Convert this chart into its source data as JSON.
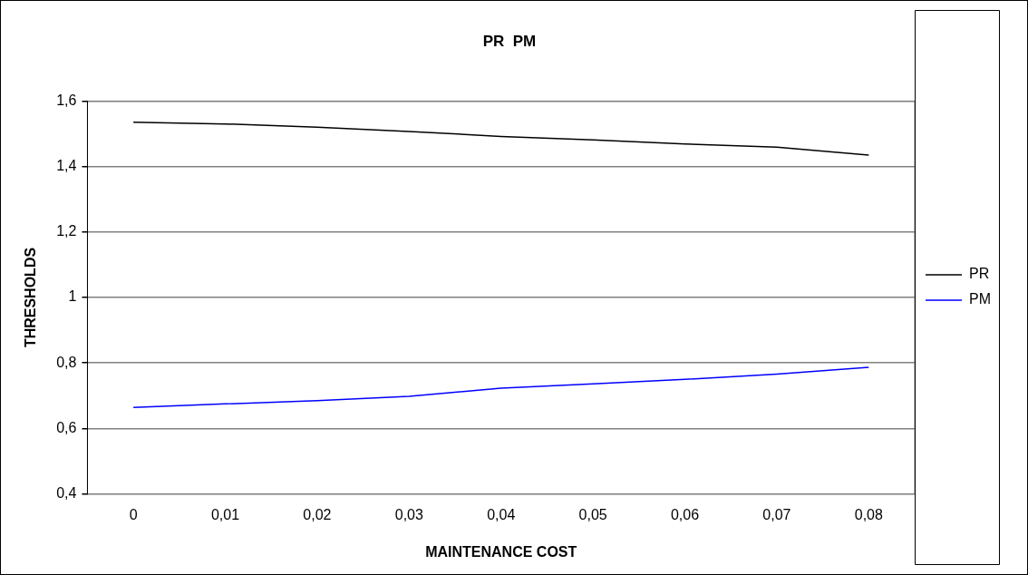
{
  "chart_data": {
    "type": "line",
    "title": "PR  PM",
    "xlabel": "MAINTENANCE COST",
    "ylabel": "THRESHOLDS",
    "categories": [
      "0",
      "0,01",
      "0,02",
      "0,03",
      "0,04",
      "0,05",
      "0,06",
      "0,07",
      "0,08"
    ],
    "series": [
      {
        "name": "PR",
        "color": "#000000",
        "values": [
          1.535,
          1.53,
          1.52,
          1.507,
          1.492,
          1.481,
          1.469,
          1.459,
          1.435
        ]
      },
      {
        "name": "PM",
        "color": "#0000ff",
        "values": [
          0.664,
          0.675,
          0.685,
          0.698,
          0.723,
          0.736,
          0.75,
          0.766,
          0.787
        ]
      }
    ],
    "ylim": [
      0.4,
      1.6
    ],
    "yticks": [
      {
        "value": 0.4,
        "label": "0,4"
      },
      {
        "value": 0.6,
        "label": "0,6"
      },
      {
        "value": 0.8,
        "label": "0,8"
      },
      {
        "value": 1,
        "label": "1"
      },
      {
        "value": 1.2,
        "label": "1,2"
      },
      {
        "value": 1.4,
        "label": "1,4"
      },
      {
        "value": 1.6,
        "label": "1,6"
      }
    ],
    "grid": "y",
    "legend": "right",
    "marker": "none",
    "line_style": "solid"
  }
}
